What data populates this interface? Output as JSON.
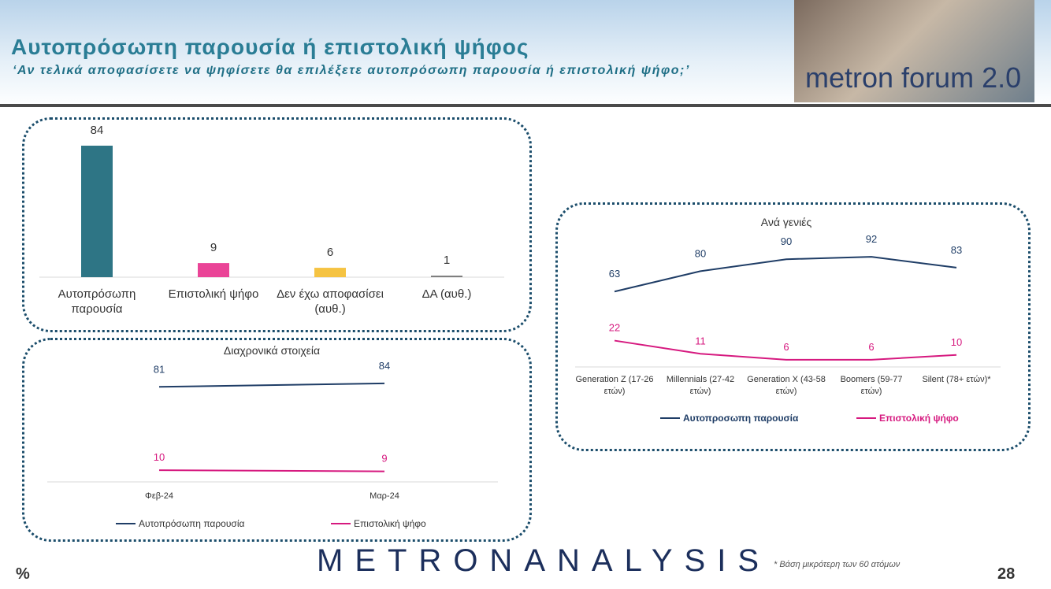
{
  "header": {
    "title": "Αυτοπρόσωπη παρουσία ή επιστολική ψήφος",
    "subtitle": "‘Αν τελικά αποφασίσετε να ψηφίσετε θα επιλέξετε αυτοπρόσωπη παρουσία ή επιστολική ψήφο;’",
    "logo": "metron forum 2.0"
  },
  "footer": {
    "brand": "METRONANALYSIS",
    "note": "*  Βάση μικρότερη των 60 ατόμων",
    "unit": "%",
    "page": "28"
  },
  "chart_data": [
    {
      "type": "bar",
      "categories": [
        "Αυτοπρόσωπη παρουσία",
        "Επιστολική ψήφο",
        "Δεν έχω αποφασίσει (αυθ.)",
        "ΔΑ (αυθ.)"
      ],
      "values": [
        84,
        9,
        6,
        1
      ],
      "colors": [
        "#2e7585",
        "#ea4497",
        "#f5c342",
        "#7f7f7f"
      ]
    },
    {
      "type": "line",
      "title": "Διαχρονικά στοιχεία",
      "categories": [
        "Φεβ-24",
        "Μαρ-24"
      ],
      "series": [
        {
          "name": "Αυτοπρόσωπη παρουσία",
          "color": "#1f3d66",
          "values": [
            81,
            84
          ]
        },
        {
          "name": "Επιστολική ψήφο",
          "color": "#d6197f",
          "values": [
            10,
            9
          ]
        }
      ]
    },
    {
      "type": "line",
      "title": "Ανά γενιές",
      "categories": [
        "Generation Z (17-26 ετών)",
        "Millennials (27-42 ετών)",
        "Generation X (43-58 ετών)",
        "Boomers (59-77 ετών)",
        "Silent (78+ ετών)*"
      ],
      "series": [
        {
          "name": "Αυτοπροσωπη παρουσία",
          "color": "#1f3d66",
          "values": [
            63,
            80,
            90,
            92,
            83
          ]
        },
        {
          "name": "Επιστολική ψήφο",
          "color": "#d6197f",
          "values": [
            22,
            11,
            6,
            6,
            10
          ]
        }
      ]
    }
  ]
}
